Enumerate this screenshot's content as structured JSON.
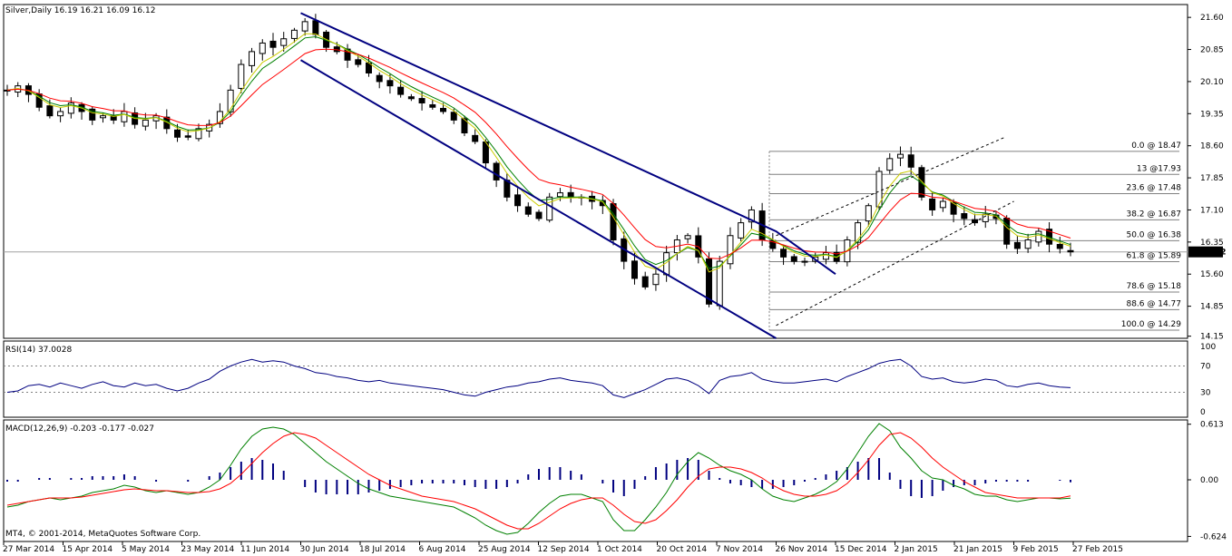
{
  "chart_data": [
    {
      "type": "candlestick",
      "title": "Silver,Daily  16.19 16.21 16.09 16.12",
      "symbol": "Silver",
      "timeframe": "Daily",
      "ohlc_label": "16.19 16.21 16.09 16.12",
      "last_price": "16.12",
      "y_ticks": [
        "21.60",
        "20.85",
        "20.10",
        "19.35",
        "18.60",
        "17.85",
        "17.10",
        "16.35",
        "15.60",
        "14.85",
        "14.15"
      ],
      "ylim": [
        14.1,
        21.9
      ],
      "x_tick_labels": [
        "27 Mar 2014",
        "15 Apr 2014",
        "5 May 2014",
        "23 May 2014",
        "11 Jun 2014",
        "30 Jun 2014",
        "18 Jul 2014",
        "6 Aug 2014",
        "25 Aug 2014",
        "12 Sep 2014",
        "1 Oct 2014",
        "20 Oct 2014",
        "7 Nov 2014",
        "26 Nov 2014",
        "15 Dec 2014",
        "2 Jan 2015",
        "21 Jan 2015",
        "9 Feb 2015",
        "27 Feb 2015"
      ],
      "close_approx": [
        19.9,
        20.0,
        19.8,
        19.5,
        19.3,
        19.4,
        19.6,
        19.4,
        19.2,
        19.3,
        19.2,
        19.4,
        19.1,
        19.2,
        19.3,
        19.0,
        18.8,
        18.8,
        19.0,
        19.1,
        19.4,
        19.9,
        20.5,
        20.8,
        21.0,
        20.9,
        21.1,
        21.3,
        21.5,
        21.2,
        20.9,
        20.8,
        20.6,
        20.5,
        20.3,
        20.1,
        20.0,
        19.8,
        19.7,
        19.6,
        19.5,
        19.4,
        19.2,
        18.9,
        18.7,
        18.2,
        17.8,
        17.4,
        17.2,
        17.0,
        16.9,
        17.4,
        17.5,
        17.4,
        17.4,
        17.3,
        17.2,
        16.4,
        15.9,
        15.5,
        15.3,
        15.6,
        16.1,
        16.4,
        16.5,
        16.0,
        14.9,
        15.9,
        16.5,
        16.8,
        17.1,
        16.4,
        16.2,
        16.0,
        15.9,
        15.9,
        16.0,
        16.1,
        15.9,
        16.4,
        16.8,
        17.2,
        18.0,
        18.3,
        18.4,
        18.1,
        17.4,
        17.1,
        17.3,
        17.0,
        16.9,
        16.8,
        17.0,
        16.9,
        16.3,
        16.2,
        16.4,
        16.6,
        16.3,
        16.2,
        16.12
      ],
      "channels": [
        {
          "name": "descending channel upper",
          "points": [
            [
              "30 Jun 2014",
              21.7
            ],
            [
              "26 Nov 2014",
              16.6
            ],
            [
              "15 Dec 2014",
              15.6
            ]
          ]
        },
        {
          "name": "descending channel lower",
          "points": [
            [
              "30 Jun 2014",
              20.6
            ],
            [
              "26 Nov 2014",
              14.1
            ]
          ]
        },
        {
          "name": "ascending channel upper (dashed)",
          "points": [
            [
              "26 Nov 2014",
              16.5
            ],
            [
              "5 Feb 2015",
              18.8
            ]
          ]
        },
        {
          "name": "ascending channel lower (dashed)",
          "points": [
            [
              "26 Nov 2014",
              14.4
            ],
            [
              "9 Feb 2015",
              17.3
            ]
          ]
        }
      ],
      "fibonacci_levels": [
        {
          "label": "0.0 @ 18.47",
          "value": 18.47
        },
        {
          "label": "13 @17.93",
          "value": 17.93
        },
        {
          "label": "23.6 @ 17.48",
          "value": 17.48
        },
        {
          "label": "38.2 @ 16.87",
          "value": 16.87
        },
        {
          "label": "50.0 @ 16.38",
          "value": 16.38
        },
        {
          "label": "61.8 @ 15.89",
          "value": 15.89
        },
        {
          "label": "78.6 @ 15.18",
          "value": 15.18
        },
        {
          "label": "88.6 @ 14.77",
          "value": 14.77
        },
        {
          "label": "100.0 @ 14.29",
          "value": 14.29
        }
      ],
      "colors": {
        "candles": "#000000",
        "ma_fast": "#008000",
        "ma_slow": "#ff0000",
        "ma_mid": "#cccc00",
        "channel": "#000080",
        "fib": "#808080"
      }
    },
    {
      "type": "line",
      "title": "RSI(14) 37.0028",
      "y_ticks": [
        "100",
        "70",
        "30",
        "0"
      ],
      "ylim": [
        0,
        100
      ],
      "levels": [
        70,
        30
      ],
      "values": [
        30,
        32,
        40,
        42,
        38,
        44,
        40,
        36,
        42,
        46,
        40,
        38,
        44,
        40,
        42,
        36,
        32,
        36,
        44,
        50,
        62,
        70,
        76,
        80,
        76,
        78,
        76,
        70,
        66,
        60,
        58,
        54,
        52,
        48,
        46,
        48,
        44,
        42,
        40,
        38,
        36,
        34,
        30,
        26,
        24,
        30,
        34,
        38,
        40,
        44,
        46,
        50,
        52,
        48,
        46,
        44,
        40,
        26,
        22,
        28,
        34,
        42,
        50,
        52,
        48,
        40,
        28,
        48,
        54,
        56,
        60,
        50,
        46,
        44,
        44,
        46,
        48,
        50,
        46,
        54,
        60,
        66,
        74,
        78,
        80,
        70,
        54,
        50,
        52,
        46,
        44,
        46,
        50,
        48,
        40,
        38,
        42,
        44,
        40,
        38,
        37
      ]
    },
    {
      "type": "bar+line",
      "title": "MACD(12,26,9) -0.203 -0.177 -0.027",
      "y_ticks": [
        "0.613",
        "0.00",
        "-0.624"
      ],
      "ylim": [
        -0.68,
        0.66
      ],
      "macd": [
        -0.3,
        -0.28,
        -0.24,
        -0.22,
        -0.2,
        -0.22,
        -0.2,
        -0.18,
        -0.14,
        -0.12,
        -0.1,
        -0.06,
        -0.08,
        -0.12,
        -0.14,
        -0.12,
        -0.14,
        -0.16,
        -0.14,
        -0.08,
        0.0,
        0.16,
        0.34,
        0.48,
        0.56,
        0.58,
        0.56,
        0.5,
        0.4,
        0.3,
        0.2,
        0.12,
        0.04,
        -0.04,
        -0.1,
        -0.14,
        -0.18,
        -0.2,
        -0.22,
        -0.24,
        -0.26,
        -0.28,
        -0.3,
        -0.36,
        -0.42,
        -0.5,
        -0.56,
        -0.6,
        -0.58,
        -0.48,
        -0.36,
        -0.26,
        -0.18,
        -0.16,
        -0.16,
        -0.2,
        -0.24,
        -0.44,
        -0.56,
        -0.56,
        -0.44,
        -0.3,
        -0.14,
        0.06,
        0.2,
        0.3,
        0.24,
        0.16,
        0.1,
        0.06,
        0.0,
        -0.1,
        -0.18,
        -0.22,
        -0.24,
        -0.2,
        -0.16,
        -0.1,
        -0.02,
        0.12,
        0.3,
        0.48,
        0.62,
        0.54,
        0.36,
        0.24,
        0.1,
        0.02,
        0.0,
        -0.06,
        -0.1,
        -0.16,
        -0.18,
        -0.18,
        -0.22,
        -0.24,
        -0.22,
        -0.2,
        -0.2,
        -0.21,
        -0.203
      ],
      "signal": [
        -0.28,
        -0.26,
        -0.24,
        -0.22,
        -0.2,
        -0.2,
        -0.2,
        -0.19,
        -0.17,
        -0.15,
        -0.13,
        -0.11,
        -0.1,
        -0.11,
        -0.12,
        -0.12,
        -0.13,
        -0.14,
        -0.14,
        -0.13,
        -0.1,
        -0.04,
        0.06,
        0.18,
        0.3,
        0.4,
        0.48,
        0.52,
        0.5,
        0.46,
        0.38,
        0.3,
        0.22,
        0.14,
        0.06,
        0.0,
        -0.06,
        -0.1,
        -0.14,
        -0.18,
        -0.2,
        -0.22,
        -0.24,
        -0.28,
        -0.32,
        -0.38,
        -0.44,
        -0.5,
        -0.54,
        -0.54,
        -0.48,
        -0.4,
        -0.32,
        -0.26,
        -0.22,
        -0.2,
        -0.2,
        -0.28,
        -0.38,
        -0.46,
        -0.48,
        -0.44,
        -0.34,
        -0.22,
        -0.08,
        0.04,
        0.12,
        0.14,
        0.14,
        0.12,
        0.08,
        0.02,
        -0.06,
        -0.12,
        -0.16,
        -0.18,
        -0.18,
        -0.16,
        -0.12,
        -0.04,
        0.08,
        0.22,
        0.38,
        0.5,
        0.52,
        0.46,
        0.36,
        0.24,
        0.14,
        0.06,
        -0.02,
        -0.08,
        -0.14,
        -0.16,
        -0.18,
        -0.2,
        -0.2,
        -0.2,
        -0.2,
        -0.2,
        -0.177
      ],
      "histogram": [
        -0.02,
        -0.02,
        0.0,
        0.02,
        0.02,
        0.0,
        0.02,
        0.02,
        0.04,
        0.04,
        0.04,
        0.06,
        0.04,
        0.0,
        -0.02,
        0.0,
        0.0,
        -0.02,
        0.0,
        0.04,
        0.08,
        0.14,
        0.2,
        0.24,
        0.22,
        0.18,
        0.1,
        0.0,
        -0.08,
        -0.14,
        -0.16,
        -0.16,
        -0.16,
        -0.16,
        -0.14,
        -0.12,
        -0.1,
        -0.08,
        -0.06,
        -0.04,
        -0.04,
        -0.04,
        -0.04,
        -0.06,
        -0.08,
        -0.1,
        -0.1,
        -0.08,
        -0.04,
        0.06,
        0.12,
        0.14,
        0.14,
        0.1,
        0.06,
        0.0,
        -0.04,
        -0.14,
        -0.18,
        -0.1,
        0.04,
        0.14,
        0.18,
        0.22,
        0.24,
        0.22,
        0.1,
        0.02,
        -0.04,
        -0.06,
        -0.08,
        -0.1,
        -0.1,
        -0.08,
        -0.06,
        -0.02,
        0.02,
        0.06,
        0.1,
        0.14,
        0.2,
        0.24,
        0.24,
        0.08,
        -0.1,
        -0.18,
        -0.2,
        -0.18,
        -0.12,
        -0.08,
        -0.06,
        -0.06,
        -0.04,
        -0.02,
        -0.02,
        -0.02,
        -0.02,
        0.0,
        0.0,
        -0.01,
        -0.027
      ],
      "colors": {
        "histogram": "#000080",
        "macd": "#008000",
        "signal": "#ff0000"
      }
    }
  ],
  "footer": {
    "copyright": "MT4, © 2001-2014, MetaQuotes Software Corp."
  }
}
